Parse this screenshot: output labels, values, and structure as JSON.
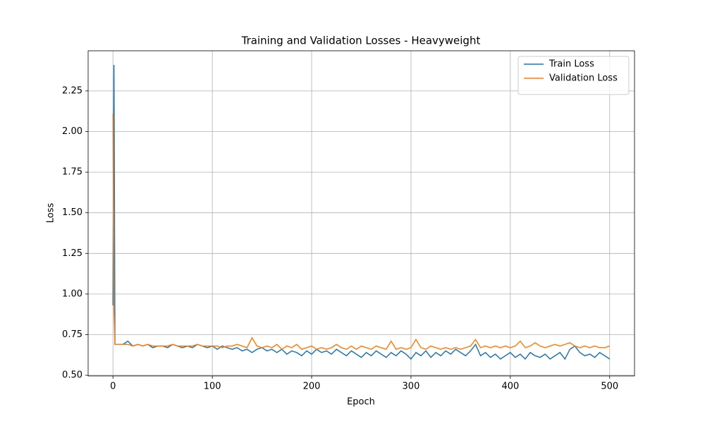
{
  "chart_data": {
    "type": "line",
    "title": "Training and Validation Losses - Heavyweight",
    "x_label": "Epoch",
    "y_label": "Loss",
    "x": [
      0,
      1,
      2,
      5,
      10,
      15,
      20,
      25,
      30,
      35,
      40,
      45,
      50,
      55,
      60,
      65,
      70,
      75,
      80,
      85,
      90,
      95,
      100,
      105,
      110,
      115,
      120,
      125,
      130,
      135,
      140,
      145,
      150,
      155,
      160,
      165,
      170,
      175,
      180,
      185,
      190,
      195,
      200,
      205,
      210,
      215,
      220,
      225,
      230,
      235,
      240,
      245,
      250,
      255,
      260,
      265,
      270,
      275,
      280,
      285,
      290,
      295,
      300,
      305,
      310,
      315,
      320,
      325,
      330,
      335,
      340,
      345,
      350,
      355,
      360,
      365,
      370,
      375,
      380,
      385,
      390,
      395,
      400,
      405,
      410,
      415,
      420,
      425,
      430,
      435,
      440,
      445,
      450,
      455,
      460,
      465,
      470,
      475,
      480,
      485,
      490,
      495,
      500
    ],
    "series": [
      {
        "name": "Train Loss",
        "color": "#1f77b4",
        "values": [
          0.93,
          2.41,
          0.69,
          0.69,
          0.69,
          0.71,
          0.68,
          0.69,
          0.68,
          0.69,
          0.67,
          0.68,
          0.68,
          0.67,
          0.69,
          0.68,
          0.67,
          0.68,
          0.67,
          0.69,
          0.68,
          0.67,
          0.68,
          0.66,
          0.68,
          0.67,
          0.66,
          0.67,
          0.65,
          0.66,
          0.64,
          0.66,
          0.67,
          0.65,
          0.66,
          0.64,
          0.66,
          0.63,
          0.65,
          0.64,
          0.62,
          0.65,
          0.63,
          0.66,
          0.64,
          0.65,
          0.63,
          0.66,
          0.64,
          0.62,
          0.65,
          0.63,
          0.61,
          0.64,
          0.62,
          0.65,
          0.63,
          0.61,
          0.64,
          0.62,
          0.65,
          0.63,
          0.6,
          0.64,
          0.62,
          0.65,
          0.61,
          0.64,
          0.62,
          0.65,
          0.63,
          0.66,
          0.64,
          0.62,
          0.65,
          0.69,
          0.62,
          0.64,
          0.61,
          0.63,
          0.6,
          0.62,
          0.64,
          0.61,
          0.63,
          0.6,
          0.64,
          0.62,
          0.61,
          0.63,
          0.6,
          0.62,
          0.64,
          0.6,
          0.66,
          0.68,
          0.64,
          0.62,
          0.63,
          0.61,
          0.64,
          0.62,
          0.6
        ]
      },
      {
        "name": "Validation Loss",
        "color": "#ff7f0e",
        "values": [
          2.11,
          0.9,
          0.69,
          0.69,
          0.69,
          0.69,
          0.68,
          0.69,
          0.68,
          0.69,
          0.68,
          0.68,
          0.68,
          0.68,
          0.69,
          0.68,
          0.68,
          0.68,
          0.68,
          0.69,
          0.68,
          0.68,
          0.68,
          0.68,
          0.67,
          0.68,
          0.68,
          0.69,
          0.68,
          0.67,
          0.73,
          0.68,
          0.67,
          0.68,
          0.67,
          0.69,
          0.66,
          0.68,
          0.67,
          0.69,
          0.66,
          0.67,
          0.68,
          0.66,
          0.67,
          0.66,
          0.67,
          0.69,
          0.67,
          0.66,
          0.68,
          0.66,
          0.68,
          0.67,
          0.66,
          0.68,
          0.67,
          0.66,
          0.71,
          0.66,
          0.67,
          0.66,
          0.67,
          0.72,
          0.67,
          0.66,
          0.68,
          0.67,
          0.66,
          0.67,
          0.66,
          0.67,
          0.66,
          0.67,
          0.68,
          0.72,
          0.67,
          0.68,
          0.67,
          0.68,
          0.67,
          0.68,
          0.67,
          0.68,
          0.71,
          0.67,
          0.68,
          0.7,
          0.68,
          0.67,
          0.68,
          0.69,
          0.68,
          0.69,
          0.7,
          0.68,
          0.67,
          0.68,
          0.67,
          0.68,
          0.67,
          0.67,
          0.68
        ]
      }
    ],
    "xlim": [
      -25,
      525
    ],
    "xticks": [
      0,
      100,
      200,
      300,
      400,
      500
    ],
    "ylim": [
      0.496,
      2.497
    ],
    "yticks": [
      {
        "value": 0.5,
        "label": "0.50"
      },
      0.75,
      {
        "value": 1,
        "label": "1.00"
      },
      1.25,
      {
        "value": 1.5,
        "label": "1.50"
      },
      1.75,
      {
        "value": 2,
        "label": "2.00"
      },
      2.25
    ],
    "grid": true,
    "legend": "upper right"
  }
}
